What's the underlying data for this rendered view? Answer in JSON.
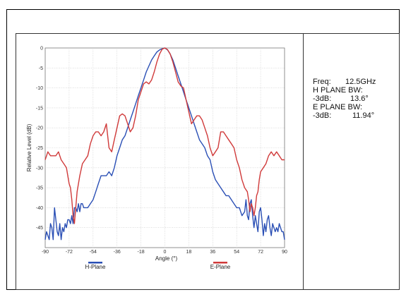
{
  "info": {
    "freq_label": "Freq:",
    "freq_value": "12.5GHz",
    "h_plane_bw_label": "H PLANE BW:",
    "h_db_label": "-3dB:",
    "h_db_value": "13.6°",
    "e_plane_bw_label": "E PLANE BW:",
    "e_db_label": "-3dB:",
    "e_db_value": "11.94°"
  },
  "chart_data": {
    "type": "line",
    "xlabel": "Angle (°)",
    "ylabel": "Relative Level (dB)",
    "xlim": [
      -90,
      90
    ],
    "ylim": [
      -50,
      0
    ],
    "xticks": [
      -90,
      -72,
      -54,
      -36,
      -18,
      0,
      18,
      36,
      54,
      72,
      90
    ],
    "yticks": [
      0,
      -5,
      -10,
      -15,
      -20,
      -25,
      -30,
      -35,
      -40,
      -45
    ],
    "grid": true,
    "legend_position": "bottom",
    "series": [
      {
        "name": "H-Plane",
        "color": "#2a4fb5",
        "x": [
          -90,
          -89,
          -88,
          -87,
          -86,
          -85,
          -84,
          -83,
          -82,
          -81,
          -80,
          -79,
          -78,
          -77,
          -76,
          -75,
          -74,
          -73,
          -72,
          -71,
          -70,
          -69,
          -68,
          -67,
          -66,
          -65,
          -64,
          -63,
          -62,
          -61,
          -60,
          -58,
          -56,
          -54,
          -52,
          -50,
          -48,
          -46,
          -44,
          -42,
          -40,
          -38,
          -36,
          -34,
          -32,
          -30,
          -28,
          -26,
          -24,
          -22,
          -20,
          -18,
          -16,
          -14,
          -12,
          -10,
          -8,
          -6,
          -4,
          -2,
          0,
          2,
          4,
          6,
          8,
          10,
          12,
          14,
          16,
          18,
          20,
          22,
          24,
          26,
          28,
          30,
          32,
          34,
          36,
          38,
          40,
          42,
          44,
          46,
          48,
          50,
          52,
          54,
          56,
          58,
          60,
          61,
          62,
          63,
          64,
          65,
          66,
          67,
          68,
          69,
          70,
          71,
          72,
          73,
          74,
          75,
          76,
          77,
          78,
          79,
          80,
          81,
          82,
          83,
          84,
          85,
          86,
          87,
          88,
          89,
          90
        ],
        "y": [
          -48,
          -46,
          -47,
          -48,
          -44,
          -45,
          -48,
          -40,
          -43,
          -46,
          -47,
          -44,
          -48,
          -45,
          -46,
          -44,
          -45,
          -43,
          -43,
          -44,
          -42,
          -44,
          -40,
          -40,
          -41,
          -39,
          -41,
          -39,
          -39,
          -40,
          -40,
          -40,
          -39,
          -38,
          -36,
          -34,
          -32,
          -32,
          -32,
          -31,
          -32,
          -30,
          -27,
          -25,
          -23,
          -22,
          -20,
          -18,
          -16,
          -14,
          -12,
          -10,
          -8,
          -6,
          -4.5,
          -3,
          -2,
          -1,
          -0.5,
          -0.2,
          0,
          -0.5,
          -1.5,
          -3,
          -5,
          -7,
          -9,
          -11,
          -13,
          -15,
          -17,
          -19,
          -21,
          -23,
          -24,
          -25,
          -27,
          -28,
          -31,
          -33,
          -34,
          -35,
          -36,
          -37,
          -37,
          -38,
          -39,
          -40,
          -40,
          -42,
          -41,
          -38,
          -42,
          -43,
          -39,
          -38,
          -42,
          -45,
          -42,
          -44,
          -46,
          -41,
          -40,
          -43,
          -47,
          -44,
          -46,
          -43,
          -42,
          -45,
          -47,
          -44,
          -45,
          -46,
          -45,
          -46,
          -44,
          -45,
          -46,
          -46,
          -48
        ]
      },
      {
        "name": "E-Plane",
        "color": "#d03a3a",
        "x": [
          -90,
          -88,
          -86,
          -84,
          -82,
          -80,
          -78,
          -76,
          -74,
          -72,
          -71,
          -70,
          -69,
          -68,
          -67,
          -66,
          -64,
          -62,
          -60,
          -58,
          -56,
          -54,
          -52,
          -50,
          -48,
          -46,
          -44,
          -42,
          -40,
          -38,
          -36,
          -34,
          -32,
          -30,
          -28,
          -26,
          -24,
          -22,
          -20,
          -18,
          -16,
          -14,
          -12,
          -10,
          -8,
          -6,
          -4,
          -2,
          0,
          2,
          4,
          6,
          8,
          10,
          12,
          14,
          16,
          18,
          20,
          22,
          24,
          26,
          28,
          30,
          32,
          34,
          36,
          38,
          40,
          42,
          44,
          46,
          48,
          50,
          52,
          54,
          56,
          58,
          60,
          62,
          63,
          64,
          65,
          66,
          67,
          68,
          69,
          70,
          71,
          72,
          74,
          76,
          78,
          80,
          82,
          84,
          86,
          88,
          90
        ],
        "y": [
          -28,
          -26,
          -27,
          -27,
          -27,
          -26,
          -28,
          -29,
          -30,
          -34,
          -35,
          -38,
          -42,
          -44,
          -40,
          -36,
          -32,
          -29,
          -28,
          -27,
          -24,
          -22,
          -21,
          -21,
          -22,
          -21,
          -19,
          -25,
          -26,
          -23,
          -20,
          -17,
          -16.5,
          -17,
          -19,
          -21,
          -20,
          -17,
          -13,
          -11,
          -9,
          -8.5,
          -9,
          -8,
          -6,
          -3.5,
          -1.5,
          -0.3,
          0,
          -0.4,
          -1.5,
          -3.5,
          -6,
          -8.5,
          -9.5,
          -10,
          -13,
          -16,
          -19,
          -18,
          -17,
          -17,
          -18,
          -20,
          -22,
          -25,
          -27,
          -26,
          -25,
          -21,
          -21,
          -22,
          -23,
          -24,
          -25,
          -28,
          -30,
          -33,
          -35,
          -36,
          -38,
          -41,
          -39,
          -40,
          -42,
          -40,
          -37,
          -36,
          -33,
          -31,
          -30,
          -29,
          -27,
          -26,
          -27,
          -26,
          -27,
          -28,
          -28
        ]
      }
    ]
  }
}
